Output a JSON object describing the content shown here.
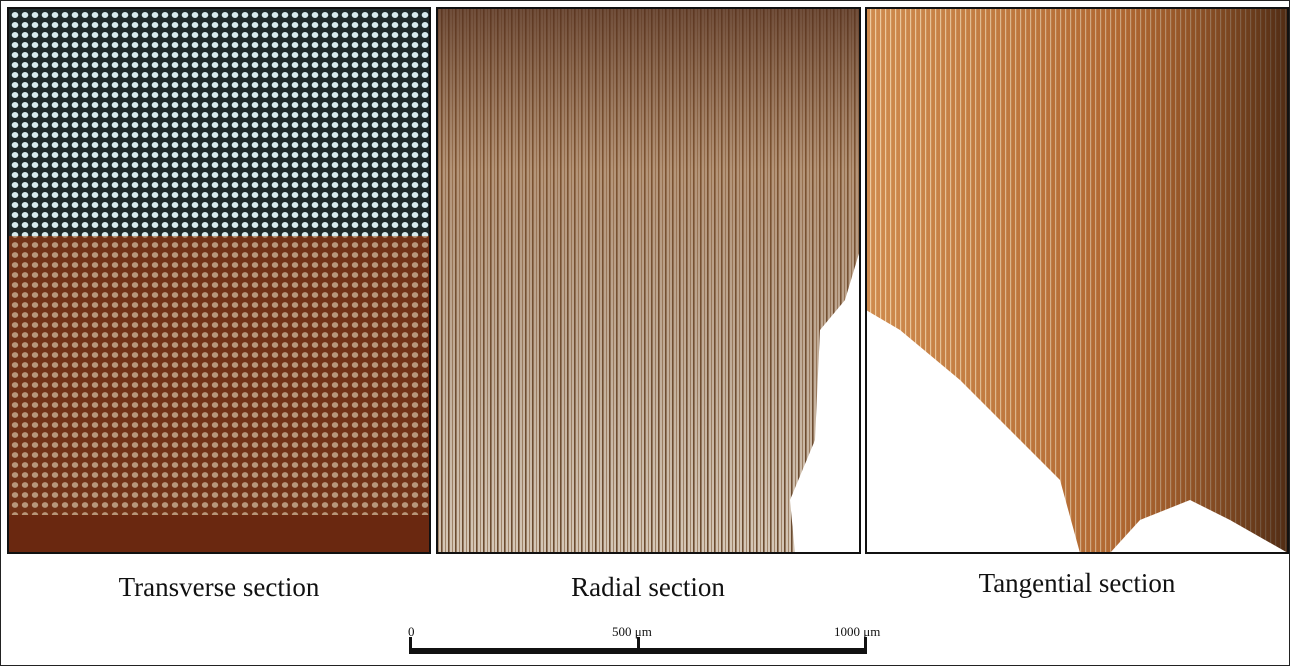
{
  "panels": [
    {
      "label": "Transverse section"
    },
    {
      "label": "Radial section"
    },
    {
      "label": "Tangential section"
    }
  ],
  "scale_bar": {
    "labels": [
      "0",
      "500 μm",
      "1000 μm"
    ]
  }
}
